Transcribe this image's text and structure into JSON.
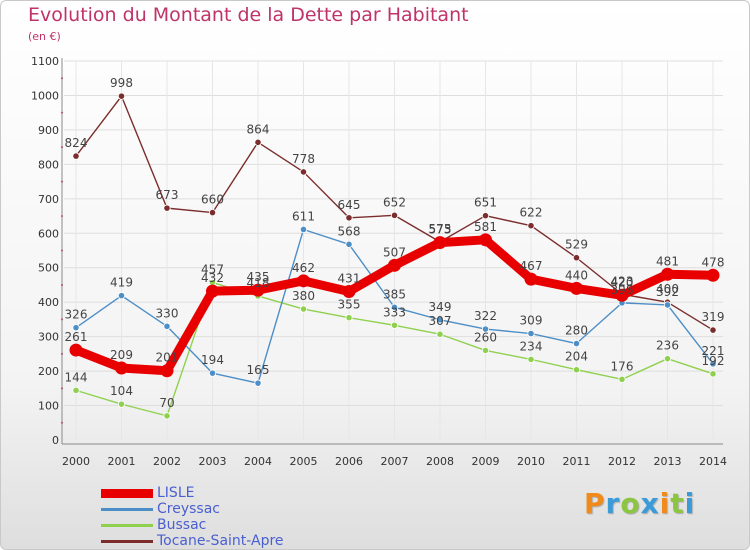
{
  "title": "Evolution du Montant de la Dette par Habitant",
  "subtitle": "(en €)",
  "logo": {
    "letters": [
      "P",
      "r",
      "o",
      "x",
      "i",
      "t",
      "i"
    ],
    "colors": [
      "#f08a1a",
      "#3b9ad8",
      "#8cc63f",
      "#3b9ad8",
      "#f08a1a",
      "#8cc63f",
      "#3b9ad8"
    ]
  },
  "chart_data": {
    "type": "line",
    "x": [
      "2000",
      "2001",
      "2002",
      "2003",
      "2004",
      "2005",
      "2006",
      "2007",
      "2008",
      "2009",
      "2010",
      "2011",
      "2012",
      "2013",
      "2014"
    ],
    "ylim": [
      0,
      1100
    ],
    "yticks": [
      "0",
      "100",
      "200",
      "300",
      "400",
      "500",
      "600",
      "700",
      "800",
      "900",
      "1000",
      "1100"
    ],
    "grid": true,
    "legend_position": "bottom-left",
    "series": [
      {
        "name": "LISLE",
        "color": "#e80000",
        "values": [
          261,
          209,
          201,
          432,
          435,
          462,
          431,
          507,
          573,
          581,
          467,
          440,
          420,
          481,
          478
        ],
        "labels": [
          "261",
          "209",
          "201",
          "432",
          "435",
          "462",
          "431",
          "507",
          "573",
          "581",
          "467",
          "440",
          "420",
          "481",
          "478"
        ]
      },
      {
        "name": "Creyssac",
        "color": "#4d8ec6",
        "values": [
          326,
          419,
          330,
          194,
          165,
          611,
          568,
          385,
          349,
          322,
          309,
          280,
          398,
          392,
          221
        ],
        "labels": [
          "326",
          "419",
          "330",
          "194",
          "165",
          "611",
          "568",
          "385",
          "349",
          "322",
          "309",
          "280",
          "398",
          "392",
          "221"
        ]
      },
      {
        "name": "Bussac",
        "color": "#8fd14f",
        "values": [
          144,
          104,
          70,
          457,
          418,
          380,
          355,
          333,
          307,
          260,
          234,
          204,
          176,
          236,
          192
        ],
        "labels": [
          "144",
          "104",
          "70",
          "457",
          "418",
          "380",
          "355",
          "333",
          "307",
          "260",
          "234",
          "204",
          "176",
          "236",
          "192"
        ]
      },
      {
        "name": "Tocane-Saint-Apre",
        "color": "#7b2d2d",
        "values": [
          824,
          998,
          673,
          660,
          864,
          778,
          645,
          652,
          575,
          651,
          622,
          529,
          423,
          400,
          319
        ],
        "labels": [
          "824",
          "998",
          "673",
          "660",
          "864",
          "778",
          "645",
          "652",
          "575",
          "651",
          "622",
          "529",
          "423",
          "400",
          "319"
        ]
      }
    ]
  }
}
